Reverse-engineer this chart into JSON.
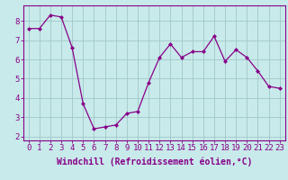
{
  "x": [
    0,
    1,
    2,
    3,
    4,
    5,
    6,
    7,
    8,
    9,
    10,
    11,
    12,
    13,
    14,
    15,
    16,
    17,
    18,
    19,
    20,
    21,
    22,
    23
  ],
  "y": [
    7.6,
    7.6,
    8.3,
    8.2,
    6.6,
    3.7,
    2.4,
    2.5,
    2.6,
    3.2,
    3.3,
    4.8,
    6.1,
    6.8,
    6.1,
    6.4,
    6.4,
    7.2,
    5.9,
    6.5,
    6.1,
    5.4,
    4.6,
    4.5
  ],
  "line_color": "#880088",
  "marker_color": "#880088",
  "bg_color": "#c8eaea",
  "grid_color": "#a0c8c8",
  "xlabel": "Windchill (Refroidissement éolien,°C)",
  "ylabel": "",
  "ylim": [
    1.8,
    8.8
  ],
  "yticks": [
    2,
    3,
    4,
    5,
    6,
    7,
    8
  ],
  "xticks": [
    0,
    1,
    2,
    3,
    4,
    5,
    6,
    7,
    8,
    9,
    10,
    11,
    12,
    13,
    14,
    15,
    16,
    17,
    18,
    19,
    20,
    21,
    22,
    23
  ],
  "label_fontsize": 7,
  "tick_fontsize": 6.5
}
